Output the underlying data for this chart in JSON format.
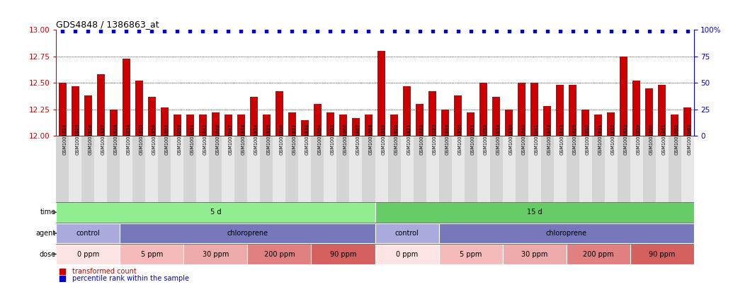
{
  "title": "GDS4848 / 1386863_at",
  "samples": [
    "GSM1001824",
    "GSM1001825",
    "GSM1001826",
    "GSM1001827",
    "GSM1001828",
    "GSM1001854",
    "GSM1001855",
    "GSM1001856",
    "GSM1001857",
    "GSM1001858",
    "GSM1001844",
    "GSM1001845",
    "GSM1001846",
    "GSM1001847",
    "GSM1001848",
    "GSM1001834",
    "GSM1001835",
    "GSM1001836",
    "GSM1001837",
    "GSM1001838",
    "GSM1001864",
    "GSM1001865",
    "GSM1001866",
    "GSM1001867",
    "GSM1001868",
    "GSM1001819",
    "GSM1001820",
    "GSM1001821",
    "GSM1001822",
    "GSM1001823",
    "GSM1001849",
    "GSM1001850",
    "GSM1001851",
    "GSM1001852",
    "GSM1001853",
    "GSM1001839",
    "GSM1001840",
    "GSM1001841",
    "GSM1001842",
    "GSM1001843",
    "GSM1001829",
    "GSM1001830",
    "GSM1001831",
    "GSM1001832",
    "GSM1001833",
    "GSM1001859",
    "GSM1001860",
    "GSM1001861",
    "GSM1001862",
    "GSM1001863"
  ],
  "red_values": [
    12.5,
    12.47,
    12.38,
    12.58,
    12.25,
    12.73,
    12.52,
    12.37,
    12.27,
    12.2,
    12.2,
    12.2,
    12.22,
    12.2,
    12.2,
    12.37,
    12.2,
    12.42,
    12.22,
    12.15,
    12.3,
    12.22,
    12.2,
    12.17,
    12.2,
    12.8,
    12.2,
    12.47,
    12.3,
    12.42,
    12.25,
    12.38,
    12.22,
    12.5,
    12.37,
    12.25,
    12.5,
    12.5,
    12.28,
    12.48,
    12.48,
    12.25,
    12.2,
    12.22,
    12.75,
    12.52,
    12.45,
    12.48,
    12.2,
    12.27
  ],
  "blue_values": [
    99,
    99,
    99,
    99,
    99,
    99,
    99,
    99,
    99,
    99,
    99,
    99,
    99,
    99,
    99,
    99,
    99,
    99,
    99,
    99,
    99,
    99,
    99,
    99,
    99,
    99,
    99,
    99,
    99,
    99,
    99,
    99,
    99,
    99,
    99,
    99,
    99,
    99,
    99,
    99,
    99,
    99,
    99,
    99,
    99,
    99,
    99,
    99,
    99,
    99
  ],
  "ylim_left": [
    12.0,
    13.0
  ],
  "ylim_right": [
    0,
    100
  ],
  "yticks_left": [
    12.0,
    12.25,
    12.5,
    12.75,
    13.0
  ],
  "yticks_right": [
    0,
    25,
    50,
    75,
    100
  ],
  "bar_color": "#cc0000",
  "dot_color": "#0000cc",
  "time_sections": [
    {
      "label": "5 d",
      "start": 0,
      "end": 25,
      "color": "#90ee90"
    },
    {
      "label": "15 d",
      "start": 25,
      "end": 50,
      "color": "#66cc66"
    }
  ],
  "agent_sections": [
    {
      "label": "control",
      "start": 0,
      "end": 5,
      "color": "#aaaadd"
    },
    {
      "label": "chloroprene",
      "start": 5,
      "end": 25,
      "color": "#7777bb"
    },
    {
      "label": "control",
      "start": 25,
      "end": 30,
      "color": "#aaaadd"
    },
    {
      "label": "chloroprene",
      "start": 30,
      "end": 50,
      "color": "#7777bb"
    }
  ],
  "dose_sections": [
    {
      "label": "0 ppm",
      "start": 0,
      "end": 5,
      "color": "#fce4e4"
    },
    {
      "label": "5 ppm",
      "start": 5,
      "end": 10,
      "color": "#f5bbbb"
    },
    {
      "label": "30 ppm",
      "start": 10,
      "end": 15,
      "color": "#eeaaaa"
    },
    {
      "label": "200 ppm",
      "start": 15,
      "end": 20,
      "color": "#e08080"
    },
    {
      "label": "90 ppm",
      "start": 20,
      "end": 25,
      "color": "#d46060"
    },
    {
      "label": "0 ppm",
      "start": 25,
      "end": 30,
      "color": "#fce4e4"
    },
    {
      "label": "5 ppm",
      "start": 30,
      "end": 35,
      "color": "#f5bbbb"
    },
    {
      "label": "30 ppm",
      "start": 35,
      "end": 40,
      "color": "#eeaaaa"
    },
    {
      "label": "200 ppm",
      "start": 40,
      "end": 45,
      "color": "#e08080"
    },
    {
      "label": "90 ppm",
      "start": 45,
      "end": 50,
      "color": "#d46060"
    }
  ],
  "fig_width": 10.59,
  "fig_height": 4.23,
  "dpi": 100
}
